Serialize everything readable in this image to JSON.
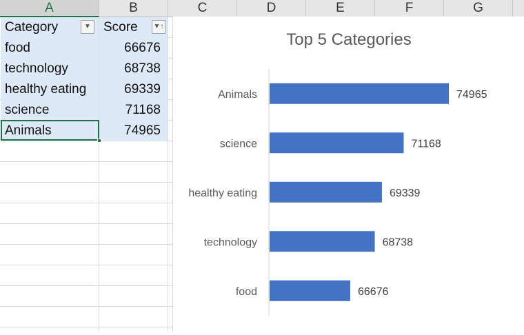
{
  "spreadsheet": {
    "columns": [
      "A",
      "B",
      "C",
      "D",
      "E",
      "F",
      "G"
    ],
    "selected_column": "A",
    "header": {
      "category": "Category",
      "score": "Score"
    },
    "rows": [
      {
        "category": "food",
        "score": "66676"
      },
      {
        "category": "technology",
        "score": "68738"
      },
      {
        "category": "healthy eating",
        "score": "69339"
      },
      {
        "category": "science",
        "score": "71168"
      },
      {
        "category": "Animals",
        "score": "74965"
      }
    ],
    "fill_color": "#dde9f6",
    "accent_color": "#217346"
  },
  "chart_data": {
    "type": "bar",
    "orientation": "horizontal",
    "title": "Top 5 Categories",
    "categories": [
      "food",
      "technology",
      "healthy eating",
      "science",
      "Animals"
    ],
    "values": [
      66676,
      68738,
      69339,
      71168,
      74965
    ],
    "data_labels": [
      "66676",
      "68738",
      "69339",
      "71168",
      "74965"
    ],
    "bar_color": "#4472c4",
    "grid": false,
    "legend": "none"
  }
}
